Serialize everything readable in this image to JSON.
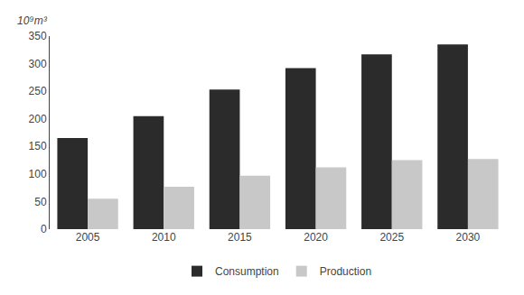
{
  "chart_data": {
    "type": "bar",
    "ylabel": "10⁹m³",
    "categories": [
      "2005",
      "2010",
      "2015",
      "2020",
      "2025",
      "2030"
    ],
    "series": [
      {
        "name": "Consumption",
        "color": "#2b2b2b",
        "values": [
          165,
          205,
          253,
          292,
          317,
          335
        ]
      },
      {
        "name": "Production",
        "color": "#c8c8c8",
        "values": [
          55,
          77,
          97,
          112,
          125,
          127
        ]
      }
    ],
    "ylim": [
      0,
      350
    ],
    "yticks": [
      0,
      50,
      100,
      150,
      200,
      250,
      300,
      350
    ],
    "grid": false,
    "legend": "bottom"
  }
}
